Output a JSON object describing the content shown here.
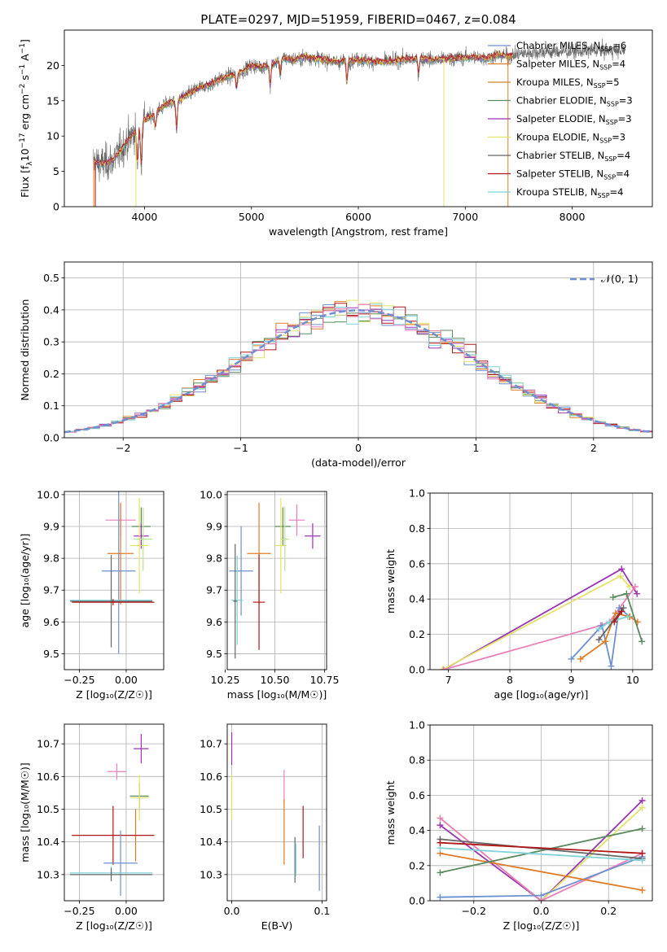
{
  "figure": {
    "title": "PLATE=0297, MJD=51959, FIBERID=0467, z=0.084"
  },
  "colors": {
    "Chabrier MILES": "#6f8fcf",
    "Salpeter MILES": "#e07b28",
    "Kroupa MILES": "#c9862c",
    "Chabrier ELODIE": "#5b8a5e",
    "Salpeter ELODIE": "#9b35b5",
    "Kroupa ELODIE": "#e2e26a",
    "Chabrier STELIB": "#666666",
    "Salpeter STELIB": "#b01818",
    "Kroupa STELIB": "#7fd3d8",
    "pink": "#e87fb8",
    "pale_green": "#b8e68c"
  },
  "chart_data": [
    {
      "id": "spectrum",
      "type": "line",
      "title": "PLATE=0297, MJD=51959, FIBERID=0467, z=0.084",
      "xlabel": "wavelength [Angstrom, rest frame]",
      "ylabel_main": "Flux [f",
      "ylabel_sub": "λ",
      "ylabel_tail": "10",
      "ylabel_exp1": "−17",
      "ylabel_mid": " erg cm",
      "ylabel_exp2": "−2",
      "ylabel_mid2": " s",
      "ylabel_exp3": "−1",
      "ylabel_end": " A",
      "ylabel_exp4": "−1",
      "ylabel_close": "]",
      "xlim": [
        3250,
        8750
      ],
      "ylim": [
        0,
        25
      ],
      "xticks": [
        "4000",
        "5000",
        "6000",
        "7000",
        "8000"
      ],
      "yticks": [
        "0",
        "5",
        "10",
        "15",
        "20"
      ],
      "grid": false,
      "legend_position": "top-right",
      "legend": [
        {
          "name": "Chabrier MILES",
          "nssp": "6"
        },
        {
          "name": "Salpeter MILES",
          "nssp": "4"
        },
        {
          "name": "Kroupa MILES",
          "nssp": "5"
        },
        {
          "name": "Chabrier ELODIE",
          "nssp": "3"
        },
        {
          "name": "Salpeter ELODIE",
          "nssp": "3"
        },
        {
          "name": "Kroupa ELODIE",
          "nssp": "3"
        },
        {
          "name": "Chabrier STELIB",
          "nssp": "4"
        },
        {
          "name": "Salpeter STELIB",
          "nssp": "4"
        },
        {
          "name": "Kroupa STELIB",
          "nssp": "4"
        }
      ],
      "nssp_label": "N",
      "nssp_sub": "SSP",
      "continuum": [
        [
          3500,
          6.5
        ],
        [
          3600,
          6.0
        ],
        [
          3700,
          6.5
        ],
        [
          3800,
          8.5
        ],
        [
          3900,
          10.5
        ],
        [
          4000,
          12.3
        ],
        [
          4100,
          13.2
        ],
        [
          4200,
          14.5
        ],
        [
          4300,
          15.0
        ],
        [
          4400,
          15.8
        ],
        [
          4500,
          16.8
        ],
        [
          4600,
          17.2
        ],
        [
          4700,
          18.0
        ],
        [
          4800,
          18.5
        ],
        [
          4900,
          19.0
        ],
        [
          5000,
          20.0
        ],
        [
          5100,
          19.8
        ],
        [
          5200,
          20.2
        ],
        [
          5300,
          21.0
        ],
        [
          5400,
          20.8
        ],
        [
          5500,
          21.2
        ],
        [
          5600,
          21.0
        ],
        [
          5700,
          20.8
        ],
        [
          5800,
          20.5
        ],
        [
          5900,
          20.7
        ],
        [
          6000,
          20.8
        ],
        [
          6100,
          20.6
        ],
        [
          6200,
          20.5
        ],
        [
          6300,
          20.6
        ],
        [
          6400,
          20.8
        ],
        [
          6500,
          20.9
        ],
        [
          6600,
          21.0
        ],
        [
          6700,
          20.8
        ],
        [
          6800,
          20.9
        ],
        [
          6900,
          21.0
        ],
        [
          7000,
          21.1
        ],
        [
          7100,
          21.2
        ],
        [
          7200,
          21.0
        ],
        [
          7300,
          21.5
        ],
        [
          7400,
          21.3
        ],
        [
          7500,
          21.6
        ],
        [
          7600,
          21.8
        ],
        [
          7700,
          21.9
        ],
        [
          7800,
          21.9
        ],
        [
          8000,
          22.0
        ],
        [
          8200,
          22.1
        ],
        [
          8500,
          22.1
        ]
      ],
      "absorption_lines": [
        [
          3934,
          -5
        ],
        [
          3969,
          -6
        ],
        [
          4102,
          -2
        ],
        [
          4300,
          -4
        ],
        [
          4861,
          -2
        ],
        [
          5175,
          -3
        ],
        [
          5270,
          -2
        ],
        [
          5893,
          -3
        ],
        [
          6563,
          -2
        ]
      ],
      "model_end": 7450,
      "observed_start": 3520,
      "observed_end": 8500
    },
    {
      "id": "residuals",
      "type": "bar",
      "xlabel": "(data-model)/error",
      "ylabel": "Normed distribution",
      "xlim": [
        -2.5,
        2.5
      ],
      "ylim": [
        0,
        0.55
      ],
      "xticks": [
        "−2",
        "−1",
        "0",
        "1",
        "2"
      ],
      "yticks": [
        "0.0",
        "0.1",
        "0.2",
        "0.3",
        "0.4",
        "0.5"
      ],
      "grid": true,
      "legend_position": "top-right",
      "legend_label": "𝒩(0, 1)",
      "bin_width": 0.1
    },
    {
      "id": "age-Z",
      "type": "scatter",
      "xlabel": "Z [log₁₀(Z/Z☉)]",
      "ylabel": "age  [log₁₀(age/yr)]",
      "xlim": [
        -0.33,
        0.2
      ],
      "ylim": [
        9.45,
        10.01
      ],
      "xticks": [
        "−0.25",
        "0.00"
      ],
      "yticks": [
        "9.5",
        "9.6",
        "9.7",
        "9.8",
        "9.9",
        "10.0"
      ],
      "grid": true,
      "points": [
        {
          "c": "pink",
          "x": -0.03,
          "xe": 0.08,
          "y": 9.92,
          "ye": 0.05
        },
        {
          "c": "Chabrier ELODIE",
          "x": 0.08,
          "xe": 0.05,
          "y": 9.9,
          "ye": 0.06
        },
        {
          "c": "Salpeter ELODIE",
          "x": 0.08,
          "xe": 0.04,
          "y": 9.87,
          "ye": 0.04
        },
        {
          "c": "Kroupa ELODIE",
          "x": 0.07,
          "xe": 0.05,
          "y": 9.84,
          "ye": 0.15
        },
        {
          "c": "Salpeter MILES",
          "x": -0.03,
          "xe": 0.07,
          "y": 9.815,
          "ye": 0.16
        },
        {
          "c": "Chabrier MILES",
          "x": -0.04,
          "xe": 0.09,
          "y": 9.76,
          "ye": 0.26
        },
        {
          "c": "Kroupa STELIB",
          "x": -0.08,
          "xe": 0.22,
          "y": 9.668,
          "ye": 0.01
        },
        {
          "c": "Chabrier STELIB",
          "x": -0.08,
          "xe": 0.22,
          "y": 9.665,
          "ye": 0.145
        },
        {
          "c": "Salpeter STELIB",
          "x": -0.07,
          "xe": 0.22,
          "y": 9.662,
          "ye": 0.01
        },
        {
          "c": "pale_green",
          "x": 0.09,
          "xe": 0.05,
          "y": 9.86,
          "ye": 0.1
        }
      ]
    },
    {
      "id": "age-mass",
      "type": "scatter",
      "xlabel": "mass [log₁₀(M/M☉)]",
      "ylabel": "",
      "xlim": [
        10.26,
        10.76
      ],
      "ylim": [
        9.45,
        10.01
      ],
      "xticks": [
        "10.25",
        "10.50",
        "10.75"
      ],
      "yticks": [
        "9.5",
        "9.6",
        "9.7",
        "9.8",
        "9.9",
        "10.0"
      ],
      "grid": true,
      "points": [
        {
          "c": "pink",
          "x": 10.61,
          "xe": 0.04,
          "y": 9.92,
          "ye": 0.05
        },
        {
          "c": "Chabrier ELODIE",
          "x": 10.54,
          "xe": 0.04,
          "y": 9.9,
          "ye": 0.06
        },
        {
          "c": "Salpeter ELODIE",
          "x": 10.69,
          "xe": 0.04,
          "y": 9.87,
          "ye": 0.04
        },
        {
          "c": "Kroupa ELODIE",
          "x": 10.53,
          "xe": 0.03,
          "y": 9.84,
          "ye": 0.15
        },
        {
          "c": "Salpeter MILES",
          "x": 10.42,
          "xe": 0.06,
          "y": 9.815,
          "ye": 0.16
        },
        {
          "c": "Chabrier MILES",
          "x": 10.33,
          "xe": 0.06,
          "y": 9.76,
          "ye": 0.14
        },
        {
          "c": "Kroupa STELIB",
          "x": 10.31,
          "xe": 0.03,
          "y": 9.668,
          "ye": 0.14
        },
        {
          "c": "Chabrier STELIB",
          "x": 10.3,
          "xe": 0.01,
          "y": 9.665,
          "ye": 0.18
        },
        {
          "c": "Salpeter STELIB",
          "x": 10.42,
          "xe": 0.03,
          "y": 9.662,
          "ye": 0.15
        },
        {
          "c": "pale_green",
          "x": 10.55,
          "xe": 0.02,
          "y": 9.86,
          "ye": 0.1
        }
      ]
    },
    {
      "id": "weight-age",
      "type": "line",
      "xlabel": "age  [log₁₀(age/yr)]",
      "ylabel": "mass weight",
      "xlim": [
        6.7,
        10.32
      ],
      "ylim": [
        0,
        1
      ],
      "xticks": [
        "7",
        "8",
        "9",
        "10"
      ],
      "yticks": [
        "0.0",
        "0.2",
        "0.4",
        "0.6",
        "0.8",
        "1.0"
      ],
      "grid": true,
      "series": [
        {
          "c": "Salpeter ELODIE",
          "x": [
            6.92,
            9.82,
            10.07
          ],
          "y": [
            0.0,
            0.57,
            0.43
          ]
        },
        {
          "c": "Kroupa ELODIE",
          "x": [
            6.9,
            9.8,
            9.95
          ],
          "y": [
            0.0,
            0.53,
            0.47
          ]
        },
        {
          "c": "pink",
          "x": [
            6.92,
            9.48,
            9.62,
            10.04
          ],
          "y": [
            0.0,
            0.25,
            0.27,
            0.47
          ]
        },
        {
          "c": "Chabrier MILES",
          "x": [
            9.0,
            9.5,
            9.65,
            9.78,
            9.95
          ],
          "y": [
            0.06,
            0.25,
            0.02,
            0.35,
            0.3
          ]
        },
        {
          "c": "Salpeter MILES",
          "x": [
            9.15,
            9.55,
            9.72,
            9.95,
            10.08
          ],
          "y": [
            0.06,
            0.16,
            0.32,
            0.3,
            0.27
          ]
        },
        {
          "c": "Chabrier ELODIE",
          "x": [
            9.68,
            9.9,
            10.15
          ],
          "y": [
            0.41,
            0.43,
            0.16
          ]
        },
        {
          "c": "Kroupa STELIB",
          "x": [
            9.45,
            9.62,
            9.92
          ],
          "y": [
            0.23,
            0.27,
            0.3
          ]
        },
        {
          "c": "Chabrier STELIB",
          "x": [
            9.45,
            9.85
          ],
          "y": [
            0.17,
            0.35
          ]
        },
        {
          "c": "Salpeter STELIB",
          "x": [
            9.7,
            9.82
          ],
          "y": [
            0.27,
            0.33
          ]
        }
      ]
    },
    {
      "id": "mass-Z",
      "type": "scatter",
      "xlabel": "Z [log₁₀(Z/Z☉)]",
      "ylabel": "mass [log₁₀(M/M☉)]",
      "xlim": [
        -0.33,
        0.2
      ],
      "ylim": [
        10.22,
        10.76
      ],
      "xticks": [
        "−0.25",
        "0.00"
      ],
      "yticks": [
        "10.3",
        "10.4",
        "10.5",
        "10.6",
        "10.7"
      ],
      "grid": true,
      "points": [
        {
          "c": "Salpeter ELODIE",
          "x": 0.08,
          "xe": 0.04,
          "y": 10.685,
          "ye": 0.045
        },
        {
          "c": "pink",
          "x": -0.05,
          "xe": 0.05,
          "y": 10.615,
          "ye": 0.025
        },
        {
          "c": "Chabrier ELODIE",
          "x": 0.07,
          "xe": 0.05,
          "y": 10.54,
          "ye": 0.04
        },
        {
          "c": "Kroupa ELODIE",
          "x": 0.07,
          "xe": 0.05,
          "y": 10.535,
          "ye": 0.07
        },
        {
          "c": "Salpeter MILES",
          "x": 0.05,
          "xe": 0.01,
          "y": 10.42,
          "ye": 0.08
        },
        {
          "c": "Salpeter STELIB",
          "x": -0.07,
          "xe": 0.22,
          "y": 10.42,
          "ye": 0.09
        },
        {
          "c": "Chabrier MILES",
          "x": -0.03,
          "xe": 0.09,
          "y": 10.335,
          "ye": 0.1
        },
        {
          "c": "Kroupa STELIB",
          "x": -0.08,
          "xe": 0.22,
          "y": 10.305,
          "ye": 0.02
        },
        {
          "c": "Chabrier STELIB",
          "x": -0.08,
          "xe": 0.22,
          "y": 10.3,
          "ye": 0.02
        }
      ]
    },
    {
      "id": "mass-EBV",
      "type": "scatter",
      "xlabel": "E(B-V)",
      "ylabel": "",
      "xlim": [
        -0.005,
        0.105
      ],
      "ylim": [
        10.22,
        10.76
      ],
      "xticks": [
        "0.0",
        "0.1"
      ],
      "yticks": [
        "10.3",
        "10.4",
        "10.5",
        "10.6",
        "10.7"
      ],
      "grid": true,
      "points": [
        {
          "c": "Salpeter ELODIE",
          "x": 0.0,
          "xe": 0,
          "y": 10.685,
          "ye": 0.05
        },
        {
          "c": "Kroupa ELODIE",
          "x": 0.0,
          "xe": 0,
          "y": 10.535,
          "ye": 0.07
        },
        {
          "c": "pink",
          "x": 0.058,
          "xe": 0,
          "y": 10.57,
          "ye": 0.05
        },
        {
          "c": "Salpeter MILES",
          "x": 0.058,
          "xe": 0,
          "y": 10.43,
          "ye": 0.1
        },
        {
          "c": "Salpeter STELIB",
          "x": 0.079,
          "xe": 0,
          "y": 10.43,
          "ye": 0.08
        },
        {
          "c": "Chabrier STELIB",
          "x": 0.07,
          "xe": 0,
          "y": 10.345,
          "ye": 0.07
        },
        {
          "c": "Kroupa STELIB",
          "x": 0.071,
          "xe": 0,
          "y": 10.345,
          "ye": 0.05
        },
        {
          "c": "Chabrier MILES",
          "x": 0.097,
          "xe": 0,
          "y": 10.35,
          "ye": 0.1
        }
      ]
    },
    {
      "id": "weight-Z",
      "type": "line",
      "xlabel": "Z [log₁₀(Z/Z☉)]",
      "ylabel": "mass weight",
      "xlim": [
        -0.33,
        0.33
      ],
      "ylim": [
        0,
        1
      ],
      "xticks": [
        "−0.2",
        "0.0",
        "0.2"
      ],
      "yticks": [
        "0.0",
        "0.2",
        "0.4",
        "0.6",
        "0.8",
        "1.0"
      ],
      "grid": true,
      "series": [
        {
          "c": "Salpeter ELODIE",
          "x": [
            -0.3,
            0.0,
            0.3
          ],
          "y": [
            0.43,
            0.0,
            0.57
          ]
        },
        {
          "c": "Kroupa ELODIE",
          "x": [
            -0.3,
            0.0,
            0.3
          ],
          "y": [
            0.47,
            0.0,
            0.53
          ]
        },
        {
          "c": "pink",
          "x": [
            -0.3,
            0.0,
            0.3
          ],
          "y": [
            0.47,
            0.0,
            0.27
          ]
        },
        {
          "c": "Chabrier MILES",
          "x": [
            -0.3,
            0.0,
            0.3
          ],
          "y": [
            0.02,
            0.03,
            0.25
          ]
        },
        {
          "c": "Salpeter MILES",
          "x": [
            -0.3,
            0.3
          ],
          "y": [
            0.27,
            0.06
          ]
        },
        {
          "c": "Chabrier ELODIE",
          "x": [
            -0.3,
            0.3
          ],
          "y": [
            0.16,
            0.41
          ]
        },
        {
          "c": "Chabrier STELIB",
          "x": [
            -0.3,
            0.3
          ],
          "y": [
            0.35,
            0.24
          ]
        },
        {
          "c": "Kroupa STELIB",
          "x": [
            -0.3,
            0.3
          ],
          "y": [
            0.3,
            0.23
          ]
        },
        {
          "c": "Salpeter STELIB",
          "x": [
            -0.3,
            0.3
          ],
          "y": [
            0.33,
            0.27
          ]
        }
      ]
    }
  ]
}
